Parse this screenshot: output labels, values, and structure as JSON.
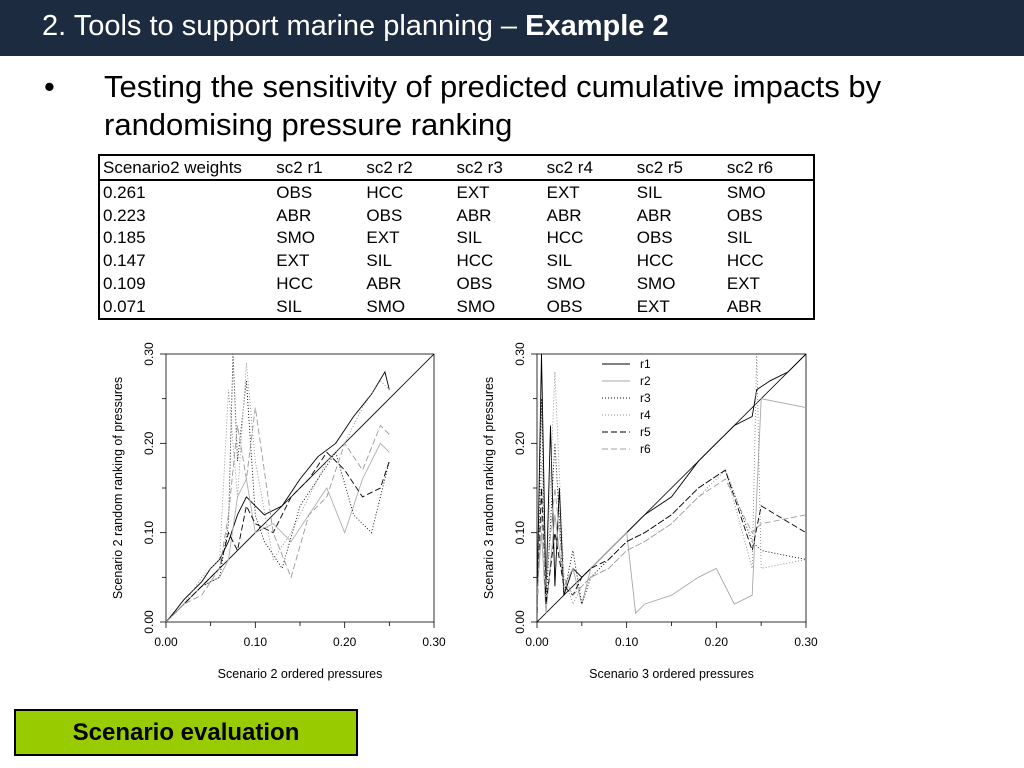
{
  "slide": {
    "title_prefix": "2. Tools to support marine planning – ",
    "title_bold": "Example 2",
    "bullet_marker": "•",
    "bullet_text": "Testing the sensitivity of predicted cumulative impacts by randomising pressure ranking",
    "button_label": "Scenario evaluation"
  },
  "table": {
    "headers": [
      "Scenario2 weights",
      "sc2 r1",
      "sc2 r2",
      "sc2 r3",
      "sc2 r4",
      "sc2 r5",
      "sc2 r6"
    ],
    "rows": [
      [
        "0.261",
        "OBS",
        "HCC",
        "EXT",
        "EXT",
        "SIL",
        "SMO"
      ],
      [
        "0.223",
        "ABR",
        "OBS",
        "ABR",
        "ABR",
        "ABR",
        "OBS"
      ],
      [
        "0.185",
        "SMO",
        "EXT",
        "SIL",
        "HCC",
        "OBS",
        "SIL"
      ],
      [
        "0.147",
        "EXT",
        "SIL",
        "HCC",
        "SIL",
        "HCC",
        "HCC"
      ],
      [
        "0.109",
        "HCC",
        "ABR",
        "OBS",
        "SMO",
        "SMO",
        "EXT"
      ],
      [
        "0.071",
        "SIL",
        "SMO",
        "SMO",
        "OBS",
        "EXT",
        "ABR"
      ]
    ]
  },
  "chart_data": [
    {
      "type": "line",
      "xlabel": "Scenario 2 ordered pressures",
      "ylabel": "Scenario 2 random ranking of pressures",
      "xlim": [
        0,
        0.3
      ],
      "ylim": [
        0,
        0.3
      ],
      "xticks": [
        "0.00",
        "0.10",
        "0.20",
        "0.30"
      ],
      "yticks": [
        "0.00",
        "0.10",
        "0.20",
        "0.30"
      ],
      "reference_line": "y = x",
      "series": [
        {
          "color": "#000000",
          "dash": "",
          "x": [
            0,
            0.01,
            0.02,
            0.03,
            0.04,
            0.05,
            0.06,
            0.07,
            0.08,
            0.09,
            0.1,
            0.11,
            0.13,
            0.15,
            0.17,
            0.19,
            0.21,
            0.23,
            0.245,
            0.25
          ],
          "y": [
            0,
            0.012,
            0.025,
            0.035,
            0.045,
            0.06,
            0.07,
            0.09,
            0.12,
            0.14,
            0.13,
            0.12,
            0.13,
            0.16,
            0.185,
            0.2,
            0.23,
            0.255,
            0.28,
            0.26
          ]
        },
        {
          "color": "#b0b0b0",
          "dash": "",
          "x": [
            0,
            0.02,
            0.04,
            0.06,
            0.07,
            0.08,
            0.09,
            0.1,
            0.12,
            0.14,
            0.16,
            0.18,
            0.2,
            0.22,
            0.24,
            0.25
          ],
          "y": [
            0,
            0.02,
            0.04,
            0.05,
            0.07,
            0.14,
            0.16,
            0.1,
            0.11,
            0.09,
            0.12,
            0.15,
            0.1,
            0.16,
            0.2,
            0.19
          ]
        },
        {
          "color": "#000000",
          "dash": "1 2",
          "x": [
            0,
            0.02,
            0.04,
            0.06,
            0.07,
            0.075,
            0.08,
            0.09,
            0.1,
            0.11,
            0.13,
            0.15,
            0.17,
            0.19,
            0.21,
            0.23,
            0.25
          ],
          "y": [
            0,
            0.02,
            0.04,
            0.05,
            0.11,
            0.3,
            0.18,
            0.27,
            0.12,
            0.09,
            0.06,
            0.13,
            0.16,
            0.19,
            0.12,
            0.1,
            0.18
          ]
        },
        {
          "color": "#8c8c8c",
          "dash": "1 2",
          "x": [
            0,
            0.02,
            0.04,
            0.06,
            0.07,
            0.08,
            0.09,
            0.1,
            0.12,
            0.14,
            0.16,
            0.18,
            0.2,
            0.22,
            0.24,
            0.25
          ],
          "y": [
            0,
            0.02,
            0.05,
            0.07,
            0.26,
            0.14,
            0.29,
            0.18,
            0.07,
            0.1,
            0.14,
            0.18,
            0.2,
            0.24,
            0.27,
            0.26
          ]
        },
        {
          "color": "#000000",
          "dash": "6 3",
          "x": [
            0,
            0.02,
            0.04,
            0.06,
            0.07,
            0.08,
            0.09,
            0.1,
            0.12,
            0.14,
            0.16,
            0.18,
            0.2,
            0.22,
            0.24,
            0.25
          ],
          "y": [
            0,
            0.02,
            0.04,
            0.06,
            0.1,
            0.08,
            0.13,
            0.11,
            0.1,
            0.14,
            0.16,
            0.19,
            0.17,
            0.14,
            0.15,
            0.18
          ]
        },
        {
          "color": "#9a9a9a",
          "dash": "6 3",
          "x": [
            0,
            0.02,
            0.04,
            0.06,
            0.07,
            0.08,
            0.09,
            0.1,
            0.12,
            0.14,
            0.16,
            0.18,
            0.2,
            0.22,
            0.24,
            0.25
          ],
          "y": [
            0,
            0.02,
            0.03,
            0.06,
            0.12,
            0.22,
            0.16,
            0.24,
            0.1,
            0.05,
            0.12,
            0.14,
            0.2,
            0.17,
            0.22,
            0.21
          ]
        }
      ]
    },
    {
      "type": "line",
      "xlabel": "Scenario 3 ordered pressures",
      "ylabel": "Scenario 3 random ranking of pressures",
      "xlim": [
        0,
        0.3
      ],
      "ylim": [
        0,
        0.3
      ],
      "xticks": [
        "0.00",
        "0.10",
        "0.20",
        "0.30"
      ],
      "yticks": [
        "0.00",
        "0.10",
        "0.20",
        "0.30"
      ],
      "reference_line": "y = x",
      "legend_position": "top-left",
      "series": [
        {
          "name": "r1",
          "color": "#000000",
          "dash": "",
          "x": [
            0,
            0.005,
            0.01,
            0.015,
            0.02,
            0.025,
            0.03,
            0.04,
            0.05,
            0.06,
            0.08,
            0.1,
            0.12,
            0.15,
            0.18,
            0.2,
            0.22,
            0.24,
            0.245,
            0.26,
            0.28,
            0.3
          ],
          "y": [
            0.02,
            0.3,
            0.03,
            0.22,
            0.04,
            0.15,
            0.03,
            0.06,
            0.05,
            0.06,
            0.08,
            0.1,
            0.12,
            0.14,
            0.18,
            0.2,
            0.22,
            0.23,
            0.26,
            0.27,
            0.28,
            0.3
          ]
        },
        {
          "name": "r2",
          "color": "#a8a8a8",
          "dash": "",
          "x": [
            0,
            0.005,
            0.01,
            0.02,
            0.03,
            0.04,
            0.05,
            0.06,
            0.08,
            0.1,
            0.11,
            0.12,
            0.15,
            0.18,
            0.2,
            0.22,
            0.24,
            0.25,
            0.3
          ],
          "y": [
            0.03,
            0.1,
            0.01,
            0.12,
            0.04,
            0.06,
            0.02,
            0.06,
            0.08,
            0.1,
            0.01,
            0.02,
            0.03,
            0.05,
            0.06,
            0.02,
            0.03,
            0.25,
            0.24
          ]
        },
        {
          "name": "r3",
          "color": "#000000",
          "dash": "1 2",
          "x": [
            0,
            0.005,
            0.01,
            0.02,
            0.03,
            0.04,
            0.05,
            0.06,
            0.08,
            0.1,
            0.12,
            0.15,
            0.18,
            0.21,
            0.24,
            0.25,
            0.3
          ],
          "y": [
            0.01,
            0.25,
            0.02,
            0.2,
            0.03,
            0.08,
            0.02,
            0.05,
            0.07,
            0.09,
            0.1,
            0.12,
            0.15,
            0.17,
            0.09,
            0.08,
            0.07
          ]
        },
        {
          "name": "r4",
          "color": "#8c8c8c",
          "dash": "1 2",
          "x": [
            0,
            0.005,
            0.01,
            0.02,
            0.03,
            0.04,
            0.05,
            0.06,
            0.08,
            0.1,
            0.12,
            0.15,
            0.18,
            0.21,
            0.24,
            0.245,
            0.25,
            0.3
          ],
          "y": [
            0.01,
            0.18,
            0.03,
            0.28,
            0.05,
            0.02,
            0.04,
            0.05,
            0.06,
            0.08,
            0.09,
            0.11,
            0.14,
            0.17,
            0.06,
            0.3,
            0.06,
            0.07
          ]
        },
        {
          "name": "r5",
          "color": "#000000",
          "dash": "6 3",
          "x": [
            0,
            0.005,
            0.01,
            0.02,
            0.03,
            0.04,
            0.05,
            0.06,
            0.08,
            0.1,
            0.12,
            0.15,
            0.18,
            0.21,
            0.24,
            0.25,
            0.3
          ],
          "y": [
            0.01,
            0.15,
            0.02,
            0.1,
            0.04,
            0.03,
            0.05,
            0.06,
            0.07,
            0.09,
            0.1,
            0.12,
            0.15,
            0.17,
            0.08,
            0.13,
            0.1
          ]
        },
        {
          "name": "r6",
          "color": "#a0a0a0",
          "dash": "6 3",
          "x": [
            0,
            0.005,
            0.01,
            0.02,
            0.03,
            0.04,
            0.05,
            0.06,
            0.08,
            0.1,
            0.12,
            0.15,
            0.18,
            0.21,
            0.24,
            0.25,
            0.3
          ],
          "y": [
            0.02,
            0.12,
            0.04,
            0.15,
            0.05,
            0.03,
            0.04,
            0.05,
            0.06,
            0.08,
            0.09,
            0.11,
            0.14,
            0.16,
            0.1,
            0.11,
            0.12
          ]
        }
      ]
    }
  ]
}
